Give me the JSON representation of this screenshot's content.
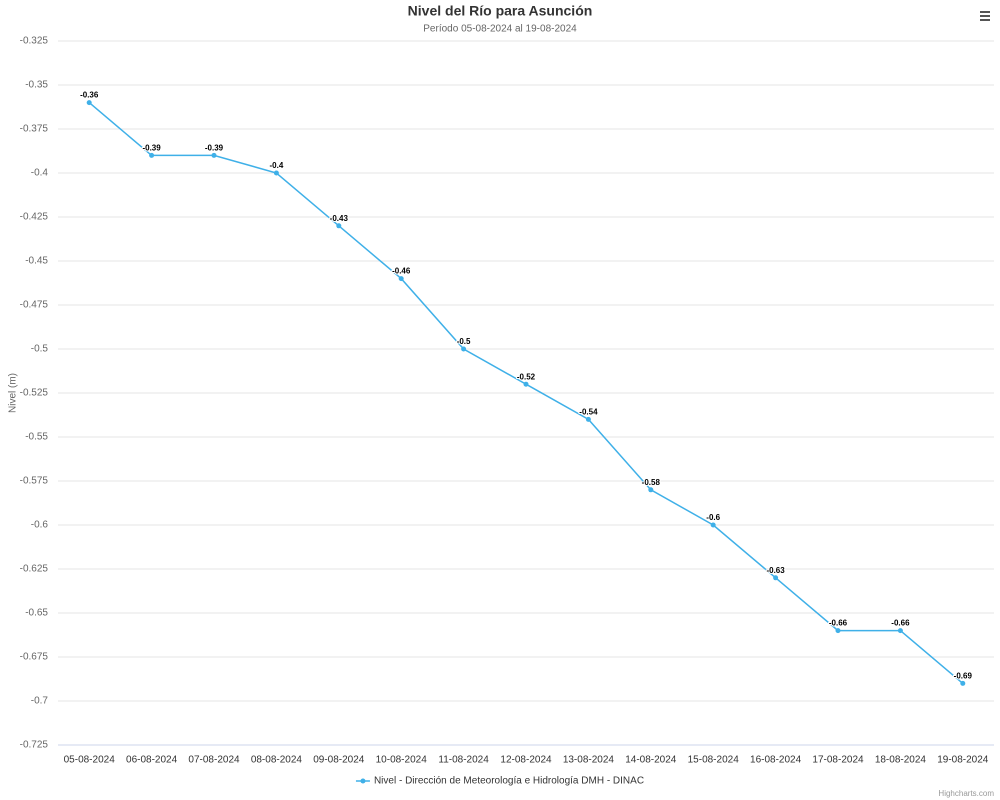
{
  "chart_data": {
    "type": "line",
    "title": "Nivel del Río para Asunción",
    "subtitle": "Período 05-08-2024 al 19-08-2024",
    "y_axis_label": "Nivel (m)",
    "categories": [
      "05-08-2024",
      "06-08-2024",
      "07-08-2024",
      "08-08-2024",
      "09-08-2024",
      "10-08-2024",
      "11-08-2024",
      "12-08-2024",
      "13-08-2024",
      "14-08-2024",
      "15-08-2024",
      "16-08-2024",
      "17-08-2024",
      "18-08-2024",
      "19-08-2024"
    ],
    "series": [
      {
        "name": "Nivel - Dirección de Meteorología e Hidrología DMH - DINAC",
        "color": "#3fb0e8",
        "values": [
          -0.36,
          -0.39,
          -0.39,
          -0.4,
          -0.43,
          -0.46,
          -0.5,
          -0.52,
          -0.54,
          -0.58,
          -0.6,
          -0.63,
          -0.66,
          -0.66,
          -0.69
        ]
      }
    ],
    "ylim": [
      -0.725,
      -0.325
    ],
    "yticks": [
      -0.325,
      -0.35,
      -0.375,
      -0.4,
      -0.425,
      -0.45,
      -0.475,
      -0.5,
      -0.525,
      -0.55,
      -0.575,
      -0.6,
      -0.625,
      -0.65,
      -0.675,
      -0.7,
      -0.725
    ],
    "grid": true,
    "credits": "Highcharts.com"
  }
}
